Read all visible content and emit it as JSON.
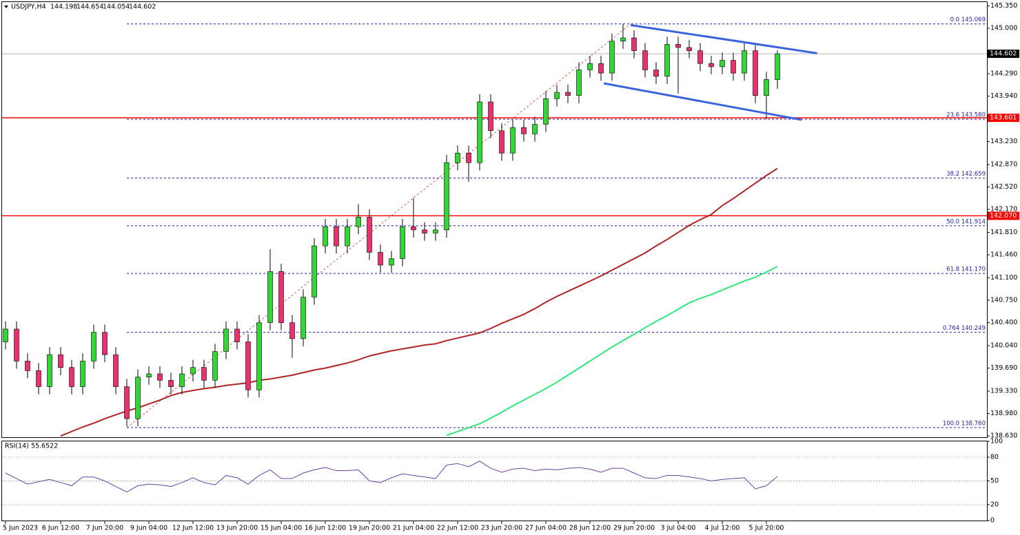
{
  "chart_data": {
    "type": "candlestick",
    "symbol": "USDJPY,H4",
    "categories": [
      "5 Jun 2023",
      null,
      null,
      null,
      null,
      "6 Jun 12:00",
      null,
      null,
      null,
      "7 Jun 20:00",
      null,
      null,
      null,
      "9 Jun 04:00",
      null,
      null,
      null,
      "12 Jun 12:00",
      null,
      null,
      null,
      "13 Jun 20:00",
      null,
      null,
      null,
      "15 Jun 04:00",
      null,
      null,
      null,
      "16 Jun 12:00",
      null,
      null,
      null,
      "19 Jun 20:00",
      null,
      null,
      null,
      "21 Jun 04:00",
      null,
      null,
      null,
      "22 Jun 12:00",
      null,
      null,
      null,
      "23 Jun 20:00",
      null,
      null,
      null,
      "27 Jun 04:00",
      null,
      null,
      null,
      "28 Jun 12:00",
      null,
      null,
      null,
      "29 Jun 20:00",
      null,
      null,
      null,
      "3 Jul 04:00",
      null,
      null,
      null,
      "4 Jul 12:00",
      null,
      null,
      null,
      "5 Jul 20:00",
      null
    ],
    "open": [
      140.1,
      140.3,
      139.8,
      139.65,
      139.4,
      139.9,
      139.7,
      139.4,
      139.8,
      140.25,
      139.9,
      139.4,
      138.9,
      139.55,
      139.6,
      139.5,
      139.4,
      139.6,
      139.7,
      139.5,
      139.95,
      140.3,
      140.1,
      139.35,
      140.4,
      141.2,
      140.4,
      140.15,
      140.8,
      141.6,
      141.9,
      141.6,
      141.9,
      142.05,
      141.5,
      141.3,
      141.4,
      141.9,
      141.85,
      141.8,
      141.85,
      142.9,
      143.05,
      142.9,
      143.85,
      143.4,
      143.05,
      143.45,
      143.35,
      143.5,
      143.9,
      144.0,
      143.95,
      144.35,
      144.45,
      144.3,
      144.8,
      144.85,
      144.65,
      144.35,
      144.25,
      144.75,
      144.7,
      144.65,
      144.45,
      144.4,
      144.5,
      144.3,
      144.65,
      143.95,
      144.198
    ],
    "high": [
      140.42,
      140.42,
      139.92,
      139.77,
      140.02,
      140.02,
      139.82,
      139.92,
      140.37,
      140.37,
      140.02,
      139.52,
      139.67,
      139.72,
      139.72,
      139.62,
      139.72,
      139.82,
      139.82,
      140.07,
      140.42,
      140.42,
      140.22,
      140.52,
      141.55,
      141.32,
      140.52,
      140.92,
      141.72,
      142.02,
      142.02,
      142.02,
      142.25,
      142.17,
      141.62,
      141.52,
      142.02,
      142.35,
      141.97,
      141.97,
      143.02,
      143.17,
      143.17,
      143.97,
      143.97,
      143.52,
      143.57,
      143.57,
      143.62,
      144.02,
      144.12,
      144.12,
      144.47,
      144.57,
      144.57,
      144.92,
      145.07,
      144.97,
      144.77,
      144.47,
      144.87,
      144.87,
      144.82,
      144.77,
      144.57,
      144.62,
      144.62,
      144.77,
      144.77,
      144.32,
      144.654
    ],
    "low": [
      139.98,
      139.68,
      139.53,
      139.28,
      139.28,
      139.58,
      139.28,
      139.28,
      139.68,
      139.78,
      139.28,
      138.78,
      138.78,
      139.43,
      139.38,
      139.28,
      139.28,
      139.48,
      139.38,
      139.38,
      139.83,
      139.98,
      139.23,
      139.23,
      140.28,
      140.28,
      139.85,
      140.03,
      140.68,
      141.48,
      141.48,
      141.48,
      141.78,
      141.38,
      141.18,
      141.18,
      141.28,
      141.73,
      141.68,
      141.68,
      141.73,
      142.78,
      142.6,
      142.78,
      143.28,
      142.93,
      142.93,
      143.23,
      143.23,
      143.38,
      143.78,
      143.83,
      143.83,
      144.23,
      144.18,
      144.18,
      144.68,
      144.53,
      144.23,
      144.13,
      144.13,
      143.98,
      144.53,
      144.33,
      144.28,
      144.28,
      144.18,
      144.18,
      143.83,
      143.58,
      144.054
    ],
    "close": [
      140.3,
      139.8,
      139.65,
      139.4,
      139.9,
      139.7,
      139.4,
      139.8,
      140.25,
      139.9,
      139.4,
      138.9,
      139.55,
      139.6,
      139.5,
      139.4,
      139.6,
      139.7,
      139.5,
      139.95,
      140.3,
      140.1,
      139.35,
      140.4,
      141.2,
      140.4,
      140.15,
      140.8,
      141.6,
      141.9,
      141.6,
      141.9,
      142.05,
      141.5,
      141.3,
      141.4,
      141.9,
      141.85,
      141.8,
      141.85,
      142.9,
      143.05,
      142.9,
      143.85,
      143.4,
      143.05,
      143.45,
      143.35,
      143.5,
      143.9,
      144.0,
      143.95,
      144.35,
      144.45,
      144.3,
      144.8,
      144.85,
      144.65,
      144.35,
      144.25,
      144.75,
      144.7,
      144.65,
      144.45,
      144.4,
      144.5,
      144.3,
      144.65,
      143.95,
      144.2,
      144.602
    ],
    "up_color": "#33d633",
    "down_color": "#e8336d",
    "ylim": [
      138.61,
      145.41
    ],
    "yticks": [
      {
        "value": 145.35,
        "label": "145.350"
      },
      {
        "value": 145.0,
        "label": "145.000"
      },
      {
        "value": 144.29,
        "label": "144.290"
      },
      {
        "value": 143.94,
        "label": "143.940"
      },
      {
        "value": 143.23,
        "label": "143.230"
      },
      {
        "value": 142.87,
        "label": "142.870"
      },
      {
        "value": 142.52,
        "label": "142.520"
      },
      {
        "value": 142.17,
        "label": "142.170"
      },
      {
        "value": 141.81,
        "label": "141.810"
      },
      {
        "value": 141.46,
        "label": "141.460"
      },
      {
        "value": 141.1,
        "label": "141.100"
      },
      {
        "value": 140.75,
        "label": "140.750"
      },
      {
        "value": 140.4,
        "label": "140.400"
      },
      {
        "value": 140.04,
        "label": "140.040"
      },
      {
        "value": 139.69,
        "label": "139.690"
      },
      {
        "value": 139.33,
        "label": "139.330"
      },
      {
        "value": 138.98,
        "label": "138.980"
      },
      {
        "value": 138.63,
        "label": "138.630"
      }
    ],
    "moving_averages": [
      {
        "color": "#b22222",
        "values": [
          null,
          null,
          null,
          null,
          null,
          138.63,
          138.7,
          138.77,
          138.83,
          138.9,
          138.96,
          139.02,
          139.07,
          139.13,
          139.19,
          139.26,
          139.31,
          139.34,
          139.37,
          139.39,
          139.42,
          139.44,
          139.46,
          139.5,
          139.52,
          139.55,
          139.58,
          139.62,
          139.66,
          139.69,
          139.73,
          139.77,
          139.82,
          139.88,
          139.92,
          139.96,
          139.99,
          140.02,
          140.05,
          140.07,
          140.12,
          140.16,
          140.2,
          140.24,
          140.31,
          140.39,
          140.46,
          140.53,
          140.62,
          140.72,
          140.81,
          140.89,
          140.97,
          141.05,
          141.13,
          141.22,
          141.31,
          141.4,
          141.49,
          141.6,
          141.7,
          141.81,
          141.92,
          142.01,
          142.09,
          142.23,
          142.34,
          142.46,
          142.58,
          142.7,
          142.81
        ]
      },
      {
        "color": "#2ee87a",
        "values": [
          null,
          null,
          null,
          null,
          null,
          null,
          null,
          null,
          null,
          null,
          null,
          null,
          null,
          null,
          null,
          null,
          null,
          null,
          null,
          null,
          null,
          null,
          null,
          null,
          null,
          null,
          null,
          null,
          null,
          null,
          null,
          null,
          null,
          null,
          null,
          null,
          null,
          null,
          null,
          null,
          138.64,
          138.7,
          138.76,
          138.82,
          138.91,
          139.0,
          139.1,
          139.19,
          139.28,
          139.37,
          139.47,
          139.58,
          139.69,
          139.8,
          139.91,
          140.02,
          140.12,
          140.22,
          140.32,
          140.42,
          140.51,
          140.61,
          140.71,
          140.78,
          140.84,
          140.91,
          140.98,
          141.05,
          141.11,
          141.19,
          141.28
        ]
      }
    ],
    "fibonacci": {
      "color": "#1f1f9e",
      "levels": [
        {
          "value": 145.069,
          "label": "0.0 145.069"
        },
        {
          "value": 143.58,
          "label": "23.6 143.580"
        },
        {
          "value": 142.659,
          "label": "38.2 142.659"
        },
        {
          "value": 141.914,
          "label": "50.0 141.914"
        },
        {
          "value": 141.17,
          "label": "61.8 141.170"
        },
        {
          "value": 140.249,
          "label": "0.764 140.249"
        },
        {
          "value": 138.76,
          "label": "100.0 138.760"
        }
      ],
      "trend": {
        "color": "#cc3333",
        "x": [
          11,
          56.7
        ],
        "y": [
          138.76,
          145.069
        ]
      }
    },
    "horizontal_lines": [
      {
        "value": 143.601,
        "label": "143.601",
        "color": "#ff0000"
      },
      {
        "value": 142.07,
        "label": "142.070",
        "color": "#ff0000"
      }
    ],
    "last_price": {
      "value": 144.602,
      "label": "144.602"
    },
    "channel": {
      "color": "#3a63e0",
      "lines": [
        {
          "x": [
            56.7,
            73.6
          ],
          "y": [
            145.05,
            144.61
          ]
        },
        {
          "x": [
            54.25,
            72.2
          ],
          "y": [
            144.14,
            143.57
          ]
        }
      ]
    },
    "rsi": {
      "name": "RSI(14) 55.6522",
      "color": "#6b3fa8",
      "ylim": [
        0,
        100
      ],
      "yticks": [
        100,
        80,
        50,
        20,
        0
      ],
      "levels": [
        80,
        50,
        20
      ],
      "values": [
        60,
        53,
        46,
        49,
        52,
        48,
        44,
        55,
        55,
        50,
        43,
        36,
        44,
        46,
        45,
        43,
        48,
        54,
        48,
        45,
        57,
        54,
        46,
        57,
        64,
        53,
        53,
        60,
        64,
        67,
        63,
        63,
        64,
        50,
        48,
        54,
        59,
        57,
        55,
        53,
        70,
        72,
        68,
        75,
        66,
        61,
        65,
        66,
        63,
        65,
        64,
        66,
        67,
        65,
        61,
        66,
        66,
        60,
        54,
        53,
        57,
        57,
        55,
        53,
        50,
        52,
        53,
        54,
        40,
        44,
        55.65
      ]
    }
  }
}
